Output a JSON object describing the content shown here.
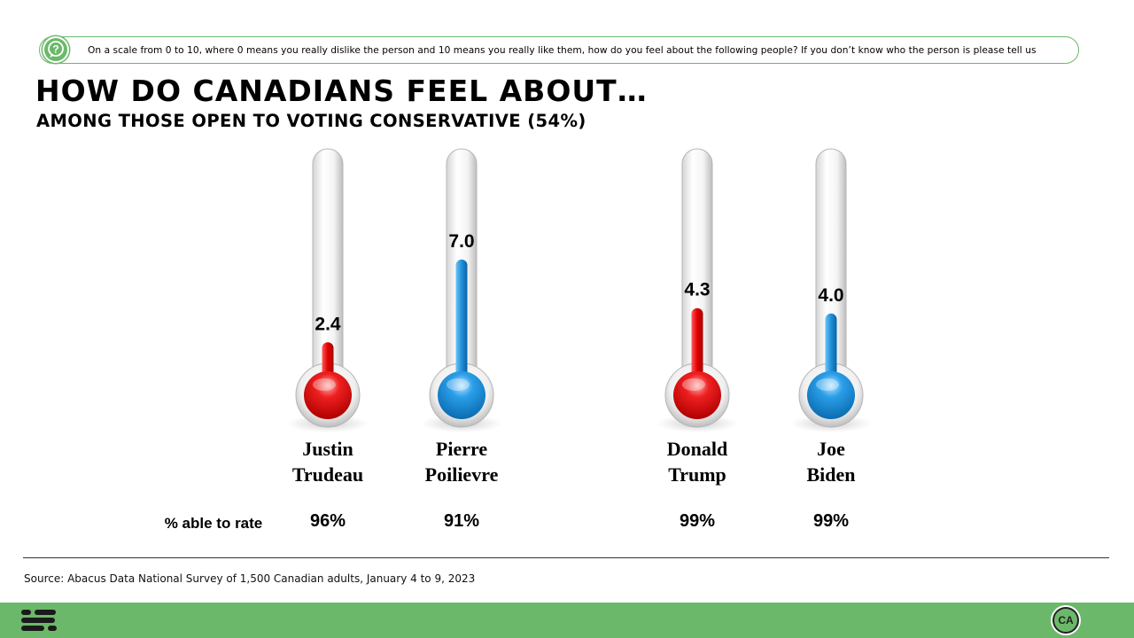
{
  "header": {
    "question": "On a scale from 0 to 10, where 0 means you really dislike the person and 10 means you really like them, how do you feel about the following people? If you don’t know who the person is please tell us",
    "question_icon": "question-bubble-icon"
  },
  "chart_data": {
    "type": "bar",
    "title": "HOW DO CANADIANS FEEL ABOUT…",
    "subtitle": "AMONG THOSE OPEN TO VOTING CONSERVATIVE (54%)",
    "categories": [
      {
        "line1": "Justin",
        "line2": "Trudeau"
      },
      {
        "line1": "Pierre",
        "line2": "Poilievre"
      },
      {
        "line1": "Donald",
        "line2": "Trump"
      },
      {
        "line1": "Joe",
        "line2": "Biden"
      }
    ],
    "values": [
      2.4,
      7.0,
      4.3,
      4.0
    ],
    "value_labels": [
      "2.4",
      "7.0",
      "4.3",
      "4.0"
    ],
    "colors": [
      "#d90000",
      "#1f8fd8",
      "#d90000",
      "#1f8fd8"
    ],
    "ylim": [
      0,
      10
    ],
    "row_label": "% able to rate",
    "able_to_rate": [
      "96%",
      "91%",
      "99%",
      "99%"
    ]
  },
  "footer": {
    "source": "Source: Abacus Data National Survey of 1,500 Canadian adults, January 4 to 9, 2023",
    "badge": "CA"
  }
}
